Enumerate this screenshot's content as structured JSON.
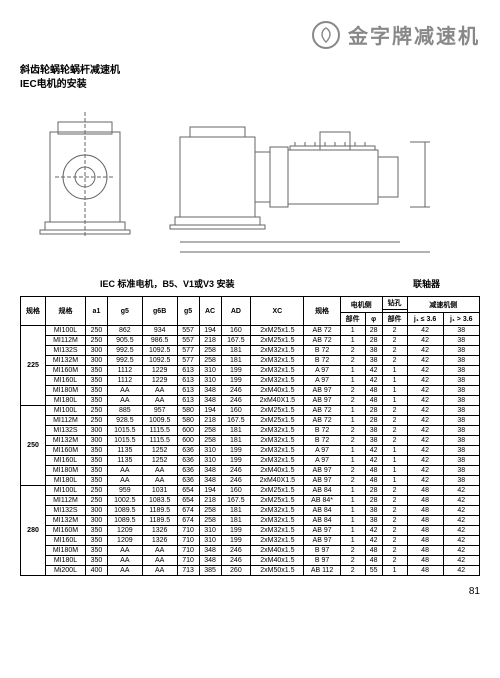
{
  "brand": "金字牌减速机",
  "subtitle_line1": "斜齿轮蜗轮蜗杆减速机",
  "subtitle_line2": "IEC电机的安装",
  "section_left": "IEC 标准电机，B5、V1或V3 安装",
  "section_right": "联轴器",
  "col_spec": "规格",
  "col_spec2": "规格",
  "col_a1": "a1",
  "col_g5": "g5",
  "col_g6B": "g6B",
  "col_g5b": "g5",
  "col_AC": "AC",
  "col_AD": "AD",
  "col_XC": "XC",
  "col_spec3": "规格",
  "col_motor": "电机侧",
  "col_drill": "钻孔",
  "col_reducer": "减速机侧",
  "col_part": "部件",
  "col_phi": "φ",
  "col_part2": "部件",
  "col_j1": "j₁ ≤ 3.6",
  "col_j2": "j₁ > 3.6",
  "page": "81",
  "groups": [
    {
      "g": "225",
      "rows": [
        [
          "MI100L",
          "250",
          "862",
          "934",
          "557",
          "194",
          "160",
          "2xM25x1.5",
          "AB 72",
          "1",
          "28",
          "2",
          "42",
          "38"
        ],
        [
          "MI112M",
          "250",
          "905.5",
          "986.5",
          "557",
          "218",
          "167.5",
          "2xM25x1.5",
          "AB 72",
          "1",
          "28",
          "2",
          "42",
          "38"
        ],
        [
          "MI132S",
          "300",
          "992.5",
          "1092.5",
          "577",
          "258",
          "181",
          "2xM32x1.5",
          "B 72",
          "2",
          "38",
          "2",
          "42",
          "38"
        ],
        [
          "MI132M",
          "300",
          "992.5",
          "1092.5",
          "577",
          "258",
          "181",
          "2xM32x1.5",
          "B 72",
          "2",
          "38",
          "2",
          "42",
          "38"
        ],
        [
          "MI160M",
          "350",
          "1112",
          "1229",
          "613",
          "310",
          "199",
          "2xM32x1.5",
          "A 97",
          "1",
          "42",
          "1",
          "42",
          "38"
        ],
        [
          "MI160L",
          "350",
          "1112",
          "1229",
          "613",
          "310",
          "199",
          "2xM32x1.5",
          "A 97",
          "1",
          "42",
          "1",
          "42",
          "38"
        ],
        [
          "MI180M",
          "350",
          "AA",
          "AA",
          "613",
          "348",
          "246",
          "2xM40x1.5",
          "AB 97",
          "2",
          "48",
          "1",
          "42",
          "38"
        ],
        [
          "MI180L",
          "350",
          "AA",
          "AA",
          "613",
          "348",
          "246",
          "2xM40X1.5",
          "AB 97",
          "2",
          "48",
          "1",
          "42",
          "38"
        ]
      ]
    },
    {
      "g": "250",
      "rows": [
        [
          "MI100L",
          "250",
          "885",
          "957",
          "580",
          "194",
          "160",
          "2xM25x1.5",
          "AB 72",
          "1",
          "28",
          "2",
          "42",
          "38"
        ],
        [
          "MI112M",
          "250",
          "928.5",
          "1009.5",
          "580",
          "218",
          "167.5",
          "2xM25x1.5",
          "AB 72",
          "1",
          "28",
          "2",
          "42",
          "38"
        ],
        [
          "MI132S",
          "300",
          "1015.5",
          "1115.5",
          "600",
          "258",
          "181",
          "2xM32x1.5",
          "B 72",
          "2",
          "38",
          "2",
          "42",
          "38"
        ],
        [
          "MI132M",
          "300",
          "1015.5",
          "1115.5",
          "600",
          "258",
          "181",
          "2xM32x1.5",
          "B 72",
          "2",
          "38",
          "2",
          "42",
          "38"
        ],
        [
          "MI160M",
          "350",
          "1135",
          "1252",
          "636",
          "310",
          "199",
          "2xM32x1.5",
          "A 97",
          "1",
          "42",
          "1",
          "42",
          "38"
        ],
        [
          "MI160L",
          "350",
          "1135",
          "1252",
          "636",
          "310",
          "199",
          "2xM32x1.5",
          "A 97",
          "1",
          "42",
          "1",
          "42",
          "38"
        ],
        [
          "MI180M",
          "350",
          "AA",
          "AA",
          "636",
          "348",
          "246",
          "2xM40x1.5",
          "AB 97",
          "2",
          "48",
          "1",
          "42",
          "38"
        ],
        [
          "MI180L",
          "350",
          "AA",
          "AA",
          "636",
          "348",
          "246",
          "2xM40X1.5",
          "AB 97",
          "2",
          "48",
          "1",
          "42",
          "38"
        ]
      ]
    },
    {
      "g": "280",
      "rows": [
        [
          "MI100L",
          "250",
          "959",
          "1031",
          "654",
          "194",
          "160",
          "2xM25x1.5",
          "AB 84",
          "1",
          "28",
          "2",
          "48",
          "42"
        ],
        [
          "MI112M",
          "250",
          "1002.5",
          "1083.5",
          "654",
          "218",
          "167.5",
          "2xM25x1.5",
          "AB 84*",
          "1",
          "28",
          "2",
          "48",
          "42"
        ],
        [
          "MI132S",
          "300",
          "1089.5",
          "1189.5",
          "674",
          "258",
          "181",
          "2xM32x1.5",
          "AB 84",
          "1",
          "38",
          "2",
          "48",
          "42"
        ],
        [
          "MI132M",
          "300",
          "1089.5",
          "1189.5",
          "674",
          "258",
          "181",
          "2xM32x1.5",
          "AB 84",
          "1",
          "38",
          "2",
          "48",
          "42"
        ],
        [
          "MI160M",
          "350",
          "1209",
          "1326",
          "710",
          "310",
          "199",
          "2xM32x1.5",
          "AB 97",
          "1",
          "42",
          "2",
          "48",
          "42"
        ],
        [
          "MI160L",
          "350",
          "1209",
          "1326",
          "710",
          "310",
          "199",
          "2xM32x1.5",
          "AB 97",
          "1",
          "42",
          "2",
          "48",
          "42"
        ],
        [
          "MI180M",
          "350",
          "AA",
          "AA",
          "710",
          "348",
          "246",
          "2xM40x1.5",
          "B 97",
          "2",
          "48",
          "2",
          "48",
          "42"
        ],
        [
          "MI180L",
          "350",
          "AA",
          "AA",
          "710",
          "348",
          "246",
          "2xM40x1.5",
          "B 97",
          "2",
          "48",
          "2",
          "48",
          "42"
        ],
        [
          "Mi200L",
          "400",
          "AA",
          "AA",
          "713",
          "385",
          "260",
          "2xM50x1.5",
          "AB 112",
          "2",
          "55",
          "1",
          "48",
          "42"
        ]
      ]
    }
  ]
}
